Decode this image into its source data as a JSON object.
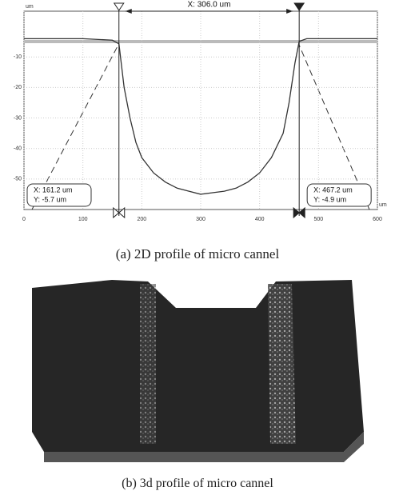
{
  "chart_data": {
    "type": "line",
    "x_unit": "um",
    "y_unit": "um",
    "xlim": [
      0,
      600
    ],
    "xticks": [
      0,
      100,
      200,
      300,
      400,
      500,
      600
    ],
    "ylim": [
      -60,
      5
    ],
    "yticks": [
      -10,
      -20,
      -30,
      -40,
      -50
    ],
    "grid": true,
    "series": [
      {
        "color": "#333333",
        "x": [
          0,
          50,
          100,
          150,
          161.2,
          170,
          180,
          190,
          200,
          220,
          240,
          260,
          280,
          300,
          320,
          340,
          360,
          380,
          400,
          420,
          440,
          450,
          460,
          467.2,
          480,
          530,
          600
        ],
        "values": [
          -4,
          -4,
          -4,
          -4.5,
          -5.7,
          -20,
          -30,
          -38,
          -43,
          -48,
          -51,
          -53,
          -54,
          -55,
          -54.5,
          -54,
          -53,
          -51,
          -48,
          -43,
          -35,
          -25,
          -12,
          -4.9,
          -4,
          -4,
          -4
        ]
      }
    ],
    "cursors": [
      {
        "x": 161.2,
        "y": -5.7,
        "x_label": "X: 161.2 um",
        "y_label": "Y: -5.7 um"
      },
      {
        "x": 467.2,
        "y": -4.9,
        "x_label": "X: 467.2 um",
        "y_label": "Y: -4.9 um"
      }
    ],
    "distance_label": "X: 306.0 um"
  },
  "captions": [
    "(a) 2D profile of micro cannel",
    "(b) 3d profile of micro cannel"
  ]
}
